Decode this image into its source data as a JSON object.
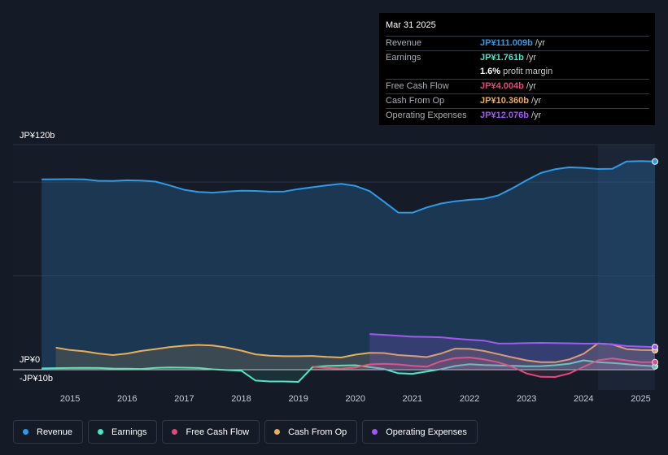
{
  "tooltip": {
    "date": "Mar 31 2025",
    "rows": [
      {
        "label": "Revenue",
        "value": "JP¥111.009b",
        "unit": "/yr",
        "color": "#2d9be8"
      },
      {
        "label": "Earnings",
        "value": "JP¥1.761b",
        "unit": "/yr",
        "color": "#4fe3c9"
      },
      {
        "label": "",
        "value": "1.6%",
        "unit": "profit margin",
        "color": "#ffffff"
      },
      {
        "label": "Free Cash Flow",
        "value": "JP¥4.004b",
        "unit": "/yr",
        "color": "#e0487f"
      },
      {
        "label": "Cash From Op",
        "value": "JP¥10.360b",
        "unit": "/yr",
        "color": "#e9ae5a"
      },
      {
        "label": "Operating Expenses",
        "value": "JP¥12.076b",
        "unit": "/yr",
        "color": "#a259f0"
      }
    ]
  },
  "legend": [
    {
      "label": "Revenue",
      "color": "#2d9be8"
    },
    {
      "label": "Earnings",
      "color": "#4fe3c9"
    },
    {
      "label": "Free Cash Flow",
      "color": "#e0487f"
    },
    {
      "label": "Cash From Op",
      "color": "#e9ae5a"
    },
    {
      "label": "Operating Expenses",
      "color": "#a259f0"
    }
  ],
  "chart_data": {
    "type": "line",
    "title": "",
    "xlabel": "",
    "ylabel": "",
    "ylim": [
      -10,
      120
    ],
    "xlim": [
      2014.0,
      2025.25
    ],
    "y_tick_labels": [
      "JP¥120b",
      "JP¥0",
      "-JP¥10b"
    ],
    "x_tick_labels": [
      "2015",
      "2016",
      "2017",
      "2018",
      "2019",
      "2020",
      "2021",
      "2022",
      "2023",
      "2024",
      "2025"
    ],
    "highlight_from": 2024.25,
    "series": [
      {
        "name": "Revenue",
        "color": "#2d9be8",
        "x": [
          2014.5,
          2015.0,
          2015.25,
          2015.5,
          2015.75,
          2016.0,
          2016.25,
          2016.5,
          2016.75,
          2017.0,
          2017.25,
          2017.5,
          2017.75,
          2018.0,
          2018.25,
          2018.5,
          2018.75,
          2019.0,
          2019.25,
          2019.5,
          2019.75,
          2020.0,
          2020.25,
          2020.5,
          2020.75,
          2021.0,
          2021.25,
          2021.5,
          2021.75,
          2022.0,
          2022.25,
          2022.5,
          2022.75,
          2023.0,
          2023.25,
          2023.5,
          2023.75,
          2024.0,
          2024.25,
          2024.5,
          2024.75,
          2025.0,
          2025.25
        ],
        "values": [
          101.5,
          101.6,
          101.5,
          100.7,
          100.6,
          101.0,
          100.8,
          100.3,
          98.2,
          95.9,
          94.8,
          94.4,
          95.0,
          95.4,
          95.3,
          94.9,
          95.0,
          96.3,
          97.3,
          98.3,
          99.1,
          98.0,
          95.2,
          89.6,
          83.8,
          83.7,
          86.5,
          88.6,
          89.8,
          90.6,
          91.1,
          92.9,
          96.7,
          101.0,
          104.9,
          106.9,
          107.9,
          107.6,
          107.0,
          107.1,
          111.0,
          111.2,
          111.0
        ]
      },
      {
        "name": "Earnings",
        "color": "#4fe3c9",
        "x": [
          2014.5,
          2015.0,
          2015.25,
          2015.5,
          2015.75,
          2016.0,
          2016.25,
          2016.5,
          2016.75,
          2017.0,
          2017.25,
          2017.5,
          2017.75,
          2018.0,
          2018.25,
          2018.5,
          2018.75,
          2019.0,
          2019.25,
          2019.5,
          2019.75,
          2020.0,
          2020.25,
          2020.5,
          2020.75,
          2021.0,
          2021.25,
          2021.5,
          2021.75,
          2022.0,
          2022.25,
          2022.5,
          2022.75,
          2023.0,
          2023.25,
          2023.5,
          2023.75,
          2024.0,
          2024.25,
          2024.5,
          2024.75,
          2025.0,
          2025.25
        ],
        "values": [
          0.7,
          0.9,
          1.0,
          0.9,
          0.6,
          0.5,
          0.4,
          1.0,
          1.2,
          1.1,
          0.9,
          0.2,
          -0.2,
          -0.5,
          -5.8,
          -6.3,
          -6.3,
          -6.5,
          1.4,
          2.0,
          2.2,
          2.4,
          1.4,
          0.4,
          -1.9,
          -2.2,
          -1.0,
          0.3,
          2.0,
          2.9,
          2.5,
          2.3,
          2.1,
          1.8,
          1.9,
          2.4,
          3.2,
          5.0,
          4.0,
          3.6,
          3.0,
          2.3,
          1.8
        ]
      },
      {
        "name": "Free Cash Flow",
        "color": "#e0487f",
        "x": [
          2019.25,
          2019.5,
          2019.75,
          2020.0,
          2020.25,
          2020.5,
          2020.75,
          2021.0,
          2021.25,
          2021.5,
          2021.75,
          2022.0,
          2022.25,
          2022.5,
          2022.75,
          2023.0,
          2023.25,
          2023.5,
          2023.75,
          2024.0,
          2024.25,
          2024.5,
          2024.75,
          2025.0,
          2025.25
        ],
        "values": [
          1.6,
          0.9,
          0.5,
          1.2,
          2.8,
          3.1,
          2.8,
          2.1,
          1.6,
          4.5,
          6.2,
          6.5,
          5.5,
          4.0,
          1.5,
          -2.0,
          -3.8,
          -3.9,
          -2.0,
          1.5,
          5.0,
          6.0,
          5.0,
          4.0,
          4.0
        ]
      },
      {
        "name": "Cash From Op",
        "color": "#e9ae5a",
        "x": [
          2014.75,
          2015.0,
          2015.25,
          2015.5,
          2015.75,
          2016.0,
          2016.25,
          2016.5,
          2016.75,
          2017.0,
          2017.25,
          2017.5,
          2017.75,
          2018.0,
          2018.25,
          2018.5,
          2018.75,
          2019.0,
          2019.25,
          2019.5,
          2019.75,
          2020.0,
          2020.25,
          2020.5,
          2020.75,
          2021.0,
          2021.25,
          2021.5,
          2021.75,
          2022.0,
          2022.25,
          2022.5,
          2022.75,
          2023.0,
          2023.25,
          2023.5,
          2023.75,
          2024.0,
          2024.25,
          2024.5,
          2024.75,
          2025.0,
          2025.25
        ],
        "values": [
          11.8,
          10.5,
          9.8,
          8.6,
          7.8,
          8.6,
          10.0,
          11.0,
          12.1,
          12.8,
          13.2,
          12.9,
          11.8,
          10.2,
          8.2,
          7.5,
          7.2,
          7.2,
          7.3,
          6.8,
          6.5,
          8.0,
          9.0,
          8.9,
          7.8,
          7.3,
          6.7,
          8.6,
          11.2,
          11.1,
          10.0,
          8.3,
          6.6,
          5.0,
          4.0,
          4.0,
          5.5,
          8.5,
          14.0,
          13.5,
          11.0,
          10.5,
          10.4
        ]
      },
      {
        "name": "Operating Expenses",
        "color": "#a259f0",
        "x": [
          2020.25,
          2020.5,
          2020.75,
          2021.0,
          2021.25,
          2021.5,
          2021.75,
          2022.0,
          2022.25,
          2022.5,
          2022.75,
          2023.0,
          2023.25,
          2023.5,
          2023.75,
          2024.0,
          2024.25,
          2024.5,
          2024.75,
          2025.0,
          2025.25
        ],
        "values": [
          19.0,
          18.6,
          18.1,
          17.6,
          17.5,
          17.3,
          16.6,
          16.0,
          15.5,
          14.0,
          14.0,
          14.2,
          14.3,
          14.2,
          14.1,
          13.9,
          13.9,
          13.5,
          12.6,
          12.3,
          12.1
        ]
      }
    ]
  }
}
